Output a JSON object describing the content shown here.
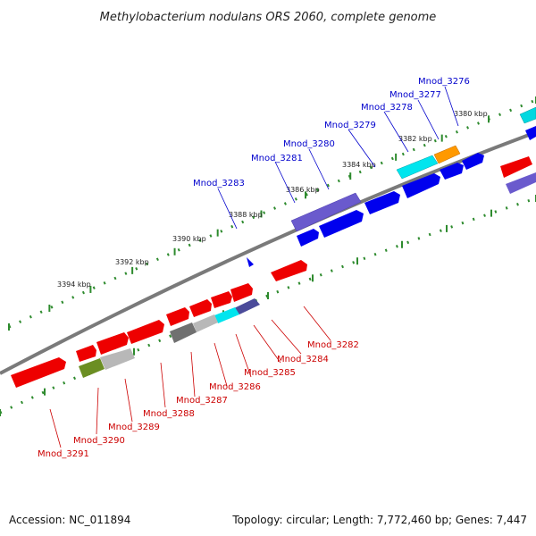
{
  "header": {
    "title": "Methylobacterium nodulans ORS 2060, complete genome"
  },
  "footer": {
    "accession": "Accession: NC_011894",
    "summary": "Topology: circular; Length: 7,772,460 bp; Genes: 7,447"
  },
  "colors": {
    "backbone": "#7a7a7a",
    "tick": "#2e8b2e",
    "label_top": "#0000cc",
    "label_bottom": "#cc0000",
    "blue": "#0000ee",
    "red": "#ee0000",
    "cyan": "#00e5ee",
    "orange": "#ff9900",
    "slate": "#6a5acd",
    "navy": "#4b4b9a",
    "olive": "#6b8e23",
    "silver": "#b8b8b8",
    "gray": "#707070"
  },
  "ticks": [
    {
      "label": "3380 kbp"
    },
    {
      "label": "3382 kbp"
    },
    {
      "label": "3384 kbp"
    },
    {
      "label": "3386 kbp"
    },
    {
      "label": "3388 kbp"
    },
    {
      "label": "3390 kbp"
    },
    {
      "label": "3392 kbp"
    },
    {
      "label": "3394 kbp"
    }
  ],
  "top_genes": [
    {
      "label": "Mnod_3276"
    },
    {
      "label": "Mnod_3277"
    },
    {
      "label": "Mnod_3278"
    },
    {
      "label": "Mnod_3279"
    },
    {
      "label": "Mnod_3280"
    },
    {
      "label": "Mnod_3281"
    },
    {
      "label": "Mnod_3283"
    }
  ],
  "bottom_genes": [
    {
      "label": "Mnod_3282"
    },
    {
      "label": "Mnod_3284"
    },
    {
      "label": "Mnod_3285"
    },
    {
      "label": "Mnod_3286"
    },
    {
      "label": "Mnod_3287"
    },
    {
      "label": "Mnod_3288"
    },
    {
      "label": "Mnod_3289"
    },
    {
      "label": "Mnod_3290"
    },
    {
      "label": "Mnod_3291"
    }
  ]
}
